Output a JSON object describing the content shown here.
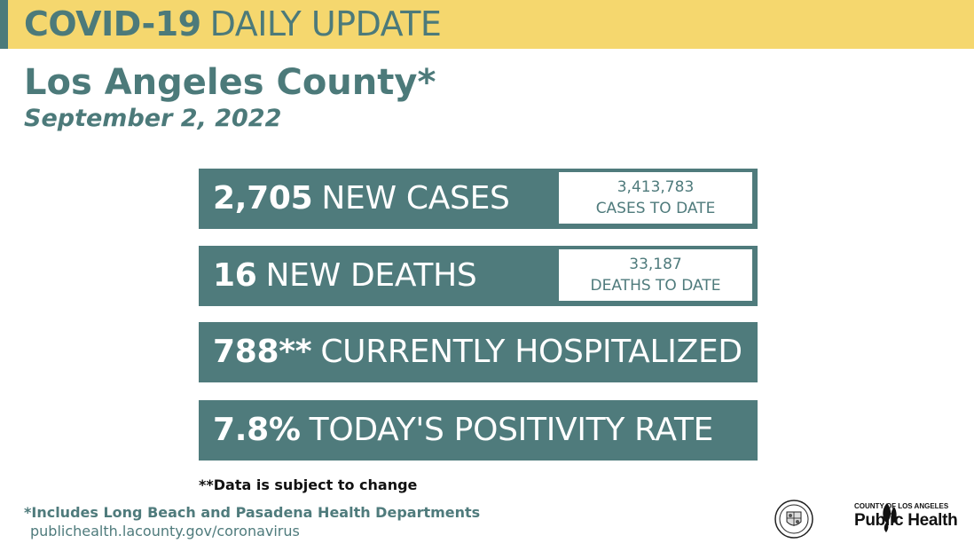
{
  "header": {
    "title_bold": "COVID-19",
    "title_light": "DAILY UPDATE",
    "location": "Los Angeles County*",
    "date": "September 2, 2022"
  },
  "stats": [
    {
      "value": "2,705",
      "label": "NEW CASES",
      "total": "3,413,783",
      "total_label": "CASES TO DATE"
    },
    {
      "value": "16",
      "label": "NEW DEATHS",
      "total": "33,187",
      "total_label": "DEATHS TO DATE"
    },
    {
      "value": "788**",
      "label": "CURRENTLY HOSPITALIZED"
    },
    {
      "value": "7.8%",
      "label": "TODAY'S POSITIVITY RATE"
    }
  ],
  "footer": {
    "note": "**Data is subject to change",
    "footnote": "*Includes Long Beach and Pasadena Health Departments",
    "url": "publichealth.lacounty.gov/coronavirus",
    "logo_small": "COUNTY OF LOS ANGELES",
    "logo_big": "Public Health"
  },
  "colors": {
    "banner": "#f5d76e",
    "teal": "#4f7b7c",
    "text_dark": "#111111"
  },
  "icons": [
    "county-seal-icon",
    "public-health-logo-icon"
  ]
}
